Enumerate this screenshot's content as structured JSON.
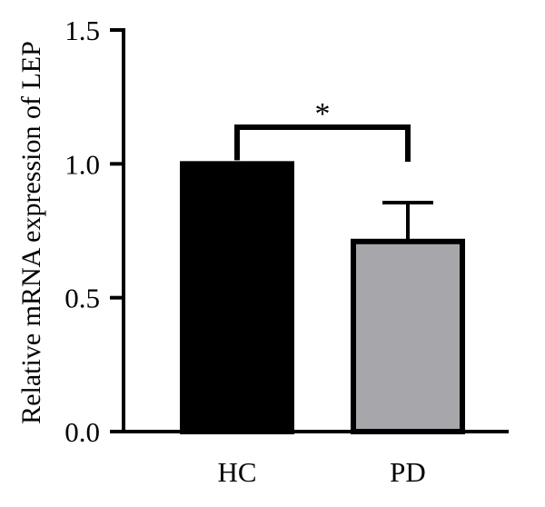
{
  "chart_data": {
    "type": "bar",
    "categories": [
      "HC",
      "PD"
    ],
    "values": [
      1.0,
      0.71
    ],
    "error_upper": [
      1.0,
      0.855
    ],
    "bar_colors": [
      "#000000",
      "#a6a6ab"
    ],
    "edge_color": "#000000",
    "title": "",
    "xlabel": "",
    "ylabel": "Relative mRNA expression of LEP",
    "ylim": [
      0,
      1.5
    ],
    "yticks": [
      0.0,
      0.5,
      1.0,
      1.5
    ],
    "ytick_labels": [
      "0.0",
      "0.5",
      "1.0",
      "1.5"
    ],
    "grid": false,
    "significance": {
      "between": [
        "HC",
        "PD"
      ],
      "label": "*"
    }
  }
}
